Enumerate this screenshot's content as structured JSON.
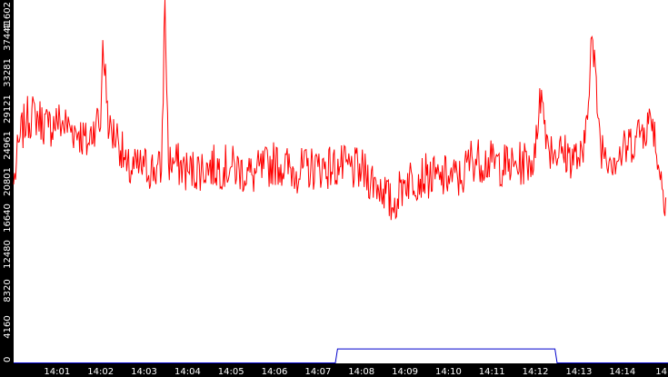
{
  "chart_data": {
    "type": "line",
    "title": "",
    "xlabel": "",
    "ylabel": "",
    "x_tick_labels": [
      "14:01",
      "14:02",
      "14:03",
      "14:04",
      "14:05",
      "14:06",
      "14:07",
      "14:08",
      "14:09",
      "14:10",
      "14:11",
      "14:12",
      "14:13",
      "14:14",
      "14"
    ],
    "y_tick_labels": [
      "0",
      "4160",
      "8320",
      "12480",
      "16640",
      "20801",
      "24961",
      "29121",
      "33281",
      "37441",
      "41602"
    ],
    "ylim": [
      0,
      41602
    ],
    "xlim_minutes": [
      0.0,
      15.05
    ],
    "grid": false,
    "colors": {
      "background": "#ffffff",
      "axis_band": "#000000",
      "tick_text": "#ffffff",
      "series_red": "#ff0000",
      "series_blue": "#0000cc"
    },
    "series": [
      {
        "color": "#ff0000",
        "x_minutes": [
          0.0,
          0.15,
          0.3,
          0.5,
          0.8,
          1.0,
          1.3,
          1.5,
          1.7,
          1.9,
          2.0,
          2.05,
          2.2,
          2.4,
          2.6,
          3.0,
          3.4,
          3.48,
          3.56,
          3.7,
          4.0,
          4.5,
          5.0,
          5.5,
          6.0,
          6.5,
          7.0,
          7.5,
          8.0,
          8.5,
          8.7,
          9.0,
          9.5,
          9.8,
          10.0,
          10.3,
          10.5,
          11.0,
          11.5,
          12.0,
          12.1,
          12.3,
          12.6,
          13.0,
          13.1,
          13.3,
          13.5,
          13.8,
          14.0,
          14.3,
          14.5,
          14.7,
          14.85,
          15.0
        ],
        "values": [
          20500,
          26000,
          28000,
          28500,
          27000,
          27800,
          27000,
          26500,
          25000,
          28000,
          27000,
          37000,
          26500,
          26000,
          22000,
          22500,
          22000,
          41602,
          23000,
          23000,
          22000,
          22500,
          22500,
          21500,
          23000,
          22000,
          22500,
          22500,
          22000,
          20000,
          17800,
          21000,
          21500,
          21000,
          21500,
          21000,
          23500,
          23000,
          22500,
          23500,
          31500,
          25000,
          24000,
          23500,
          23000,
          37400,
          25000,
          23500,
          24000,
          26000,
          27000,
          28000,
          22000,
          19000
        ]
      },
      {
        "color": "#0000cc",
        "x_minutes": [
          0.0,
          7.3,
          7.4,
          7.45,
          12.45,
          12.5,
          12.6,
          15.05
        ],
        "values": [
          50,
          50,
          50,
          1650,
          1650,
          50,
          50,
          50
        ]
      }
    ]
  }
}
